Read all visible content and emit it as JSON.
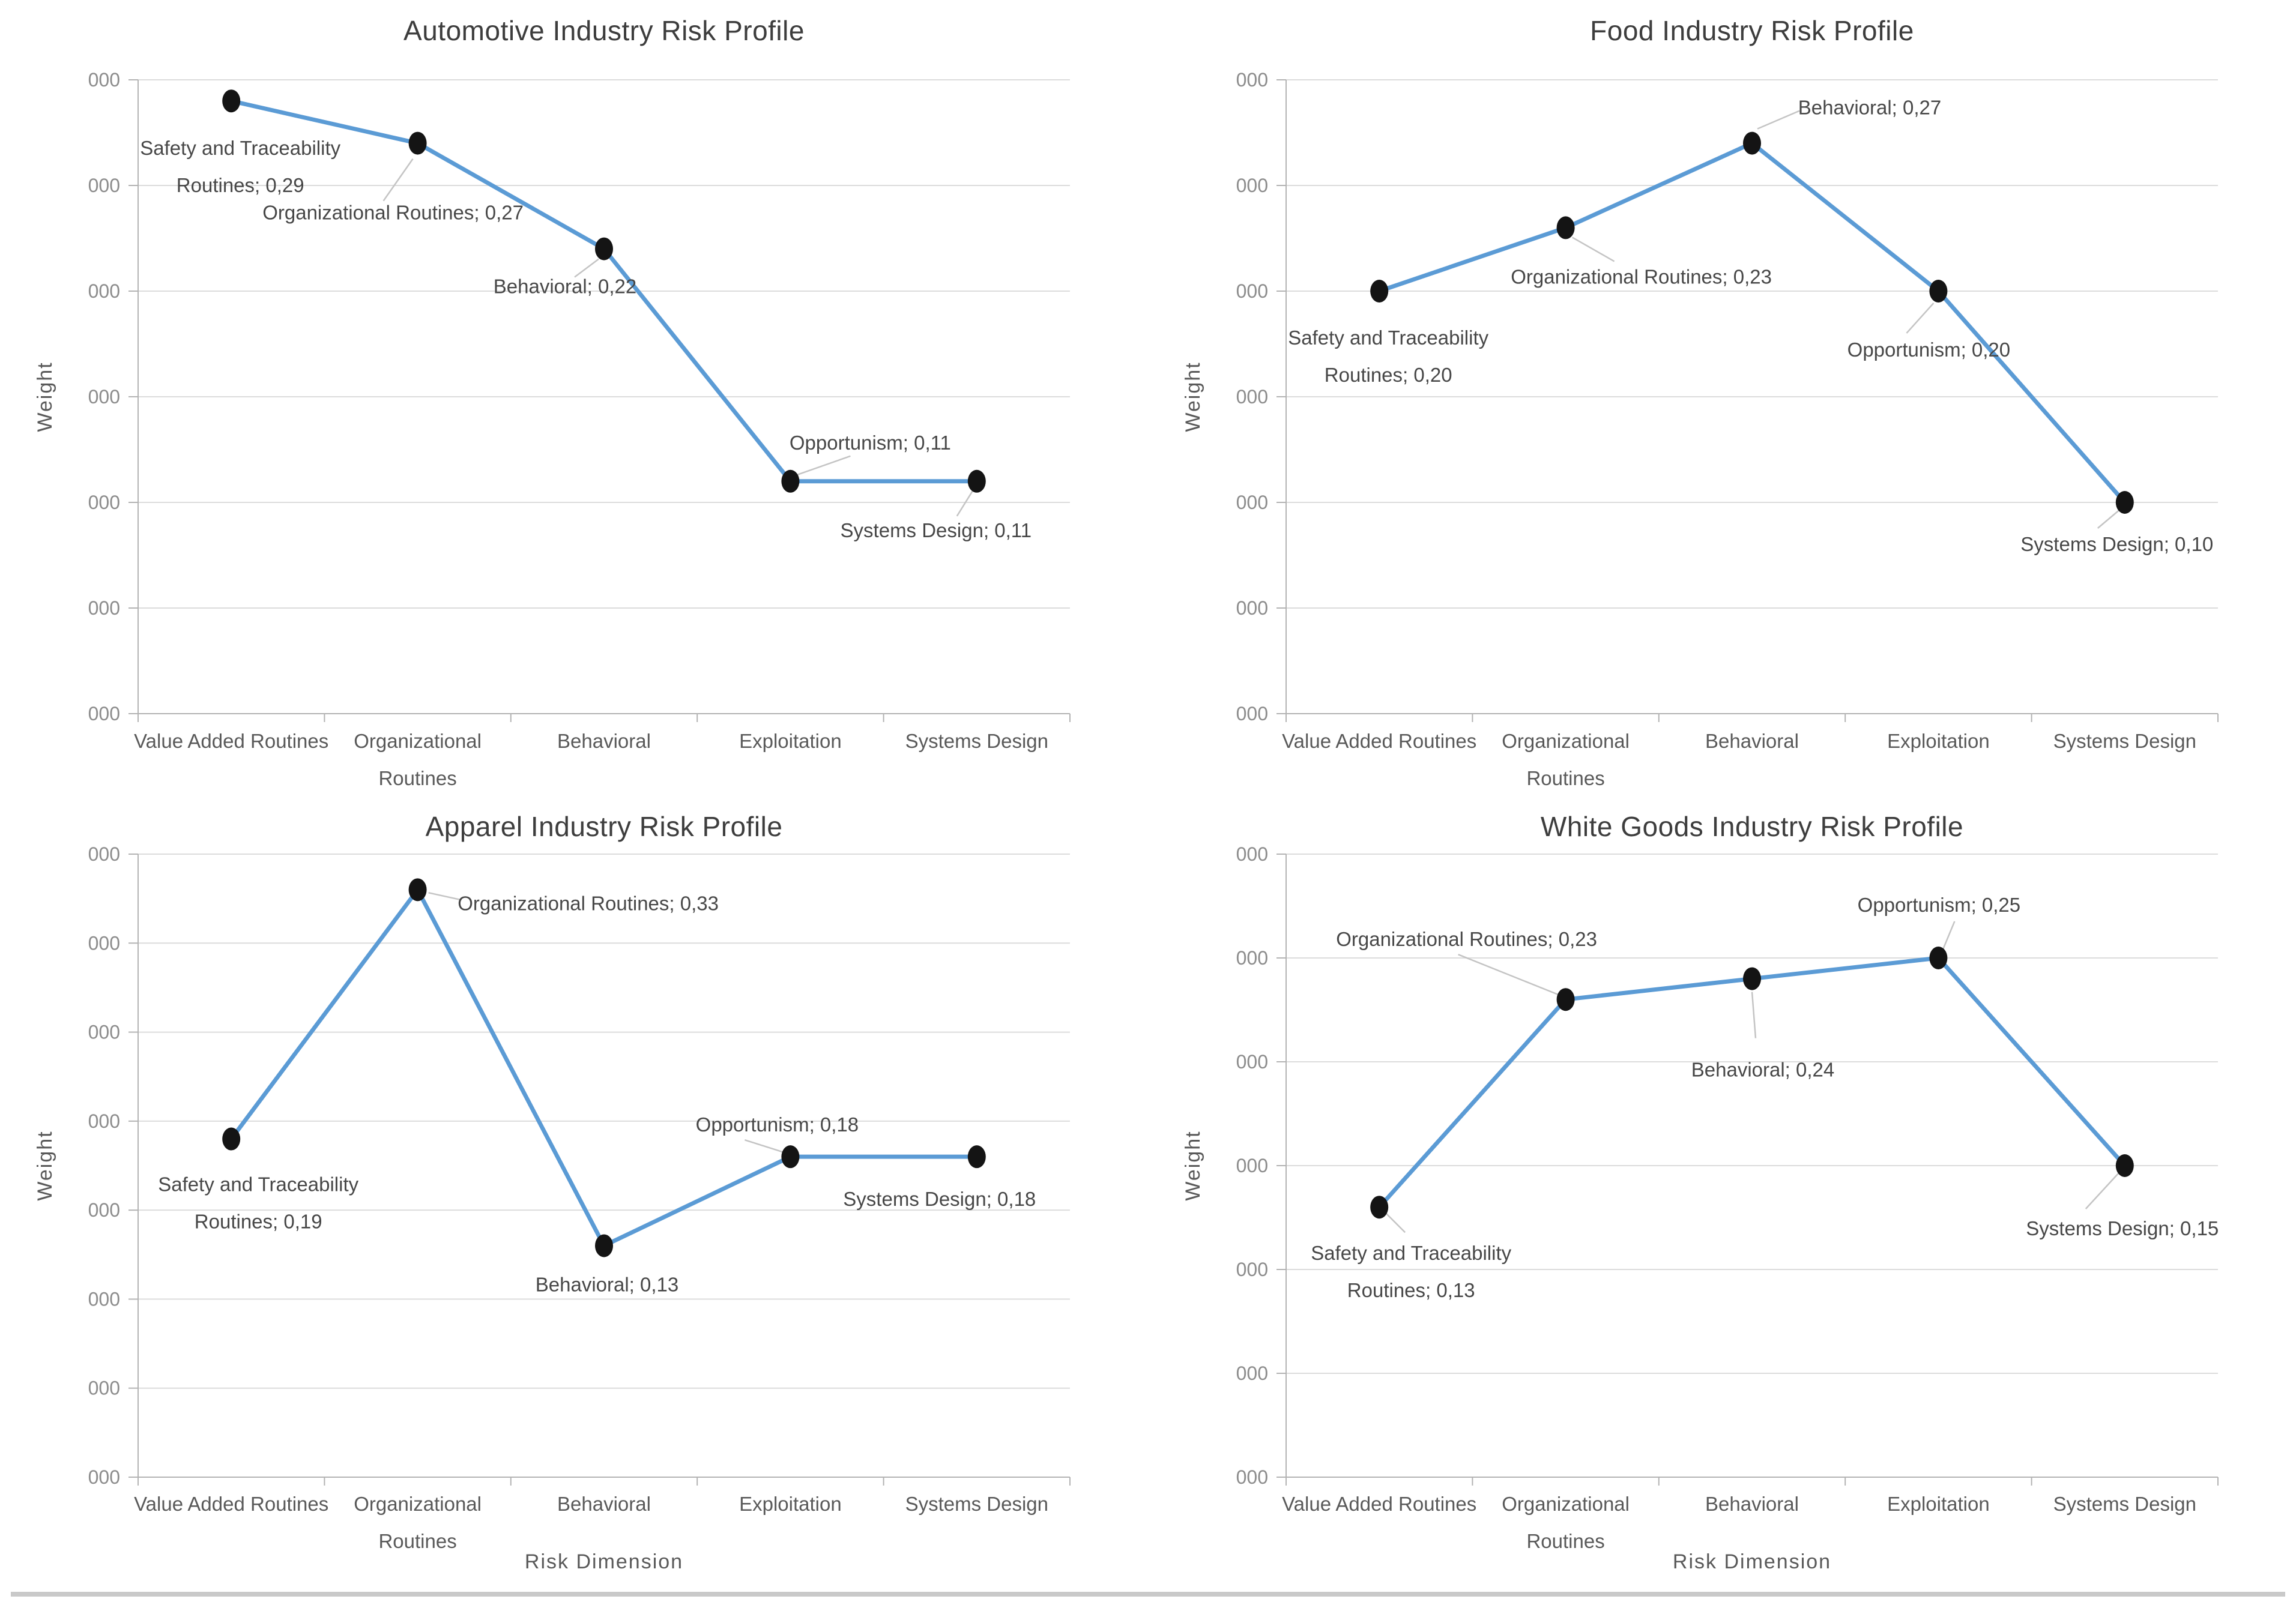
{
  "colors": {
    "line": "#5B9BD5",
    "marker": "#141414",
    "gridline": "#dcdcdc",
    "axis": "#b3b3b3",
    "leader": "#c4c4c4",
    "bottom_rule": "#c9c9c9"
  },
  "chart_data": [
    {
      "type": "line",
      "title": "Automotive Industry Risk Profile",
      "ylabel": "Weight",
      "xlabel": "",
      "ylim": [
        0,
        0.3
      ],
      "ytick_step": 0.05,
      "ytick_label_display": "000",
      "grid": true,
      "legend": false,
      "categories": [
        "Value Added Routines",
        "Organizational Routines",
        "Behavioral",
        "Exploitation",
        "Systems Design"
      ],
      "categories_wrapped": [
        [
          "Value Added Routines"
        ],
        [
          "Organizational",
          "Routines"
        ],
        [
          "Behavioral"
        ],
        [
          "Exploitation"
        ],
        [
          "Systems Design"
        ]
      ],
      "series": [
        {
          "name": "Weight",
          "color": "#5B9BD5",
          "values": [
            0.29,
            0.27,
            0.22,
            0.11,
            0.11
          ],
          "point_labels": [
            {
              "lines": [
                "Safety and Traceability",
                "Routines; 0,29"
              ],
              "dx": 15,
              "dy": 109,
              "leader": null
            },
            {
              "lines": [
                "Organizational Routines; 0,27"
              ],
              "dx": -41,
              "dy": 115,
              "leader": [
                -57,
                96,
                -8,
                26
              ]
            },
            {
              "lines": [
                "Behavioral; 0,22"
              ],
              "dx": -65,
              "dy": 62,
              "leader": [
                -49,
                47,
                -9,
                17
              ]
            },
            {
              "lines": [
                "Opportunism; 0,11"
              ],
              "dx": 133,
              "dy": -65,
              "leader": [
                9,
                -10,
                100,
                -42
              ]
            },
            {
              "lines": [
                "Systems Design; 0,11"
              ],
              "dx": -68,
              "dy": 81,
              "leader": [
                -33,
                58,
                -5,
                13
              ]
            }
          ]
        }
      ]
    },
    {
      "type": "line",
      "title": "Food Industry Risk Profile",
      "ylabel": "Weight",
      "xlabel": "",
      "ylim": [
        0,
        0.3
      ],
      "ytick_step": 0.05,
      "ytick_label_display": "000",
      "grid": true,
      "legend": false,
      "categories": [
        "Value Added Routines",
        "Organizational Routines",
        "Behavioral",
        "Exploitation",
        "Systems Design"
      ],
      "categories_wrapped": [
        [
          "Value Added Routines"
        ],
        [
          "Organizational",
          "Routines"
        ],
        [
          "Behavioral"
        ],
        [
          "Exploitation"
        ],
        [
          "Systems Design"
        ]
      ],
      "series": [
        {
          "name": "Weight",
          "color": "#5B9BD5",
          "values": [
            0.2,
            0.23,
            0.27,
            0.2,
            0.1
          ],
          "point_labels": [
            {
              "lines": [
                "Safety and Traceability",
                "Routines; 0,20"
              ],
              "dx": 15,
              "dy": 108,
              "leader": null
            },
            {
              "lines": [
                "Organizational Routines; 0,23"
              ],
              "dx": 126,
              "dy": 81,
              "leader": [
                11,
                16,
                81,
                56
              ]
            },
            {
              "lines": [
                "Behavioral; 0,27"
              ],
              "dx": 196,
              "dy": -60,
              "leader": [
                9,
                -24,
                79,
                -54
              ]
            },
            {
              "lines": [
                "Opportunism; 0,20"
              ],
              "dx": -16,
              "dy": 97,
              "leader": [
                -8,
                20,
                -53,
                70
              ]
            },
            {
              "lines": [
                "Systems Design; 0,10"
              ],
              "dx": -13,
              "dy": 69,
              "leader": [
                -7,
                11,
                -45,
                43
              ]
            }
          ]
        }
      ]
    },
    {
      "type": "line",
      "title": "Apparel Industry Risk Profile",
      "ylabel": "Weight",
      "xlabel": "Risk Dimension",
      "ylim": [
        0,
        0.35
      ],
      "ytick_step": 0.05,
      "ytick_label_display": "000",
      "grid": true,
      "legend": false,
      "categories": [
        "Value Added Routines",
        "Organizational Routines",
        "Behavioral",
        "Exploitation",
        "Systems Design"
      ],
      "categories_wrapped": [
        [
          "Value Added Routines"
        ],
        [
          "Organizational",
          "Routines"
        ],
        [
          "Behavioral"
        ],
        [
          "Exploitation"
        ],
        [
          "Systems Design"
        ]
      ],
      "series": [
        {
          "name": "Weight",
          "color": "#5B9BD5",
          "values": [
            0.19,
            0.33,
            0.13,
            0.18,
            0.18
          ],
          "point_labels": [
            {
              "lines": [
                "Safety and Traceability",
                "Routines; 0,19"
              ],
              "dx": 45,
              "dy": 106,
              "leader": null
            },
            {
              "lines": [
                "Organizational Routines; 0,33"
              ],
              "dx": 284,
              "dy": 22,
              "leader": [
                18,
                5,
                73,
                17
              ]
            },
            {
              "lines": [
                "Behavioral; 0,13"
              ],
              "dx": 5,
              "dy": 64,
              "leader": null
            },
            {
              "lines": [
                "Opportunism; 0,18"
              ],
              "dx": -22,
              "dy": -54,
              "leader": [
                -13,
                -8,
                -76,
                -28
              ]
            },
            {
              "lines": [
                "Systems Design; 0,18"
              ],
              "dx": -62,
              "dy": 70,
              "leader": null
            }
          ]
        }
      ]
    },
    {
      "type": "line",
      "title": "White Goods Industry Risk Profile",
      "ylabel": "Weight",
      "xlabel": "Risk Dimension",
      "ylim": [
        0,
        0.3
      ],
      "ytick_step": 0.05,
      "ytick_label_display": "000",
      "grid": true,
      "legend": false,
      "categories": [
        "Value Added Routines",
        "Organizational Routines",
        "Behavioral",
        "Exploitation",
        "Systems Design"
      ],
      "categories_wrapped": [
        [
          "Value Added Routines"
        ],
        [
          "Organizational",
          "Routines"
        ],
        [
          "Behavioral"
        ],
        [
          "Exploitation"
        ],
        [
          "Systems Design"
        ]
      ],
      "series": [
        {
          "name": "Weight",
          "color": "#5B9BD5",
          "values": [
            0.13,
            0.23,
            0.24,
            0.25,
            0.15
          ],
          "point_labels": [
            {
              "lines": [
                "Safety and Traceability",
                "Routines; 0,13"
              ],
              "dx": 53,
              "dy": 107,
              "leader": [
                11,
                10,
                43,
                42
              ]
            },
            {
              "lines": [
                "Organizational Routines; 0,23"
              ],
              "dx": -165,
              "dy": -101,
              "leader": [
                -12,
                -8,
                -179,
                -75
              ]
            },
            {
              "lines": [
                "Behavioral; 0,24"
              ],
              "dx": 18,
              "dy": 151,
              "leader": [
                0,
                22,
                6,
                99
              ]
            },
            {
              "lines": [
                "Opportunism; 0,25"
              ],
              "dx": 1,
              "dy": -89,
              "leader": [
                5,
                -8,
                27,
                -61
              ]
            },
            {
              "lines": [
                "Systems Design; 0,15"
              ],
              "dx": -4,
              "dy": 104,
              "leader": [
                -8,
                10,
                -65,
                72
              ]
            }
          ]
        }
      ]
    }
  ]
}
